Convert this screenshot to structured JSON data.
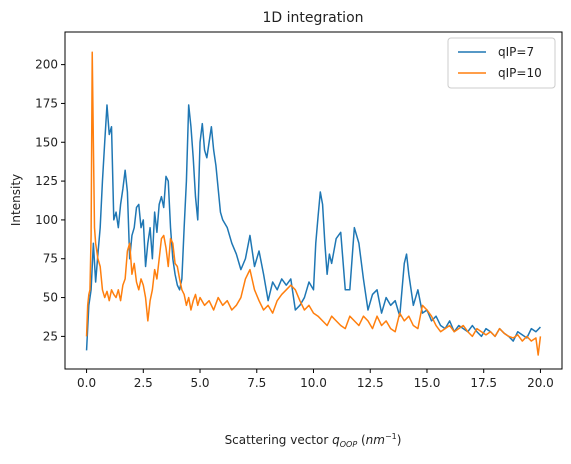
{
  "chart_data": {
    "type": "line",
    "title": "1D integration",
    "xlabel_main": "Scattering vector ",
    "xlabel_var": "q",
    "xlabel_sub": "OOP",
    "xlabel_unit_open": " (",
    "xlabel_unit": "nm",
    "xlabel_exp": "−1",
    "xlabel_unit_close": ")",
    "ylabel": "Intensity",
    "xlim": [
      -0.95,
      20.95
    ],
    "ylim": [
      4,
      221
    ],
    "xticks": [
      0.0,
      2.5,
      5.0,
      7.5,
      10.0,
      12.5,
      15.0,
      17.5,
      20.0
    ],
    "xtick_labels": [
      "0.0",
      "2.5",
      "5.0",
      "7.5",
      "10.0",
      "12.5",
      "15.0",
      "17.5",
      "20.0"
    ],
    "yticks": [
      25,
      50,
      75,
      100,
      125,
      150,
      175,
      200
    ],
    "ytick_labels": [
      "25",
      "50",
      "75",
      "100",
      "125",
      "150",
      "175",
      "200"
    ],
    "grid": false,
    "legend_position": "top-right",
    "series": [
      {
        "name": "qIP=7",
        "color": "#1f77b4",
        "x": [
          0.0,
          0.1,
          0.2,
          0.3,
          0.4,
          0.5,
          0.6,
          0.7,
          0.8,
          0.9,
          1.0,
          1.1,
          1.2,
          1.3,
          1.4,
          1.5,
          1.6,
          1.7,
          1.8,
          1.9,
          2.0,
          2.1,
          2.2,
          2.3,
          2.4,
          2.5,
          2.6,
          2.7,
          2.8,
          2.9,
          3.0,
          3.1,
          3.2,
          3.3,
          3.4,
          3.5,
          3.6,
          3.7,
          3.8,
          3.9,
          4.0,
          4.1,
          4.2,
          4.3,
          4.4,
          4.5,
          4.6,
          4.7,
          4.8,
          4.9,
          5.0,
          5.1,
          5.2,
          5.3,
          5.4,
          5.5,
          5.6,
          5.7,
          5.8,
          5.9,
          6.0,
          6.2,
          6.4,
          6.6,
          6.8,
          7.0,
          7.2,
          7.4,
          7.6,
          7.8,
          8.0,
          8.2,
          8.4,
          8.6,
          8.8,
          9.0,
          9.2,
          9.4,
          9.6,
          9.8,
          10.0,
          10.1,
          10.2,
          10.3,
          10.4,
          10.5,
          10.6,
          10.7,
          10.8,
          11.0,
          11.2,
          11.4,
          11.6,
          11.8,
          12.0,
          12.2,
          12.4,
          12.6,
          12.8,
          13.0,
          13.2,
          13.4,
          13.6,
          13.8,
          14.0,
          14.1,
          14.2,
          14.4,
          14.6,
          14.8,
          15.0,
          15.2,
          15.4,
          15.6,
          15.8,
          16.0,
          16.2,
          16.4,
          16.6,
          16.8,
          17.0,
          17.2,
          17.4,
          17.6,
          17.8,
          18.0,
          18.2,
          18.4,
          18.6,
          18.8,
          19.0,
          19.2,
          19.4,
          19.6,
          19.8,
          20.0
        ],
        "y": [
          16,
          45,
          55,
          85,
          60,
          78,
          95,
          125,
          150,
          174,
          155,
          160,
          100,
          105,
          95,
          110,
          120,
          132,
          118,
          75,
          90,
          95,
          108,
          110,
          95,
          100,
          70,
          85,
          95,
          75,
          105,
          92,
          110,
          115,
          108,
          128,
          125,
          95,
          75,
          65,
          58,
          55,
          62,
          95,
          125,
          174,
          160,
          140,
          115,
          100,
          150,
          162,
          145,
          140,
          150,
          160,
          145,
          135,
          120,
          105,
          100,
          95,
          85,
          78,
          68,
          75,
          90,
          70,
          80,
          65,
          48,
          60,
          55,
          62,
          58,
          62,
          42,
          45,
          50,
          60,
          55,
          85,
          102,
          118,
          110,
          85,
          65,
          78,
          72,
          88,
          92,
          55,
          55,
          95,
          85,
          62,
          42,
          52,
          55,
          40,
          50,
          45,
          48,
          38,
          72,
          78,
          65,
          45,
          55,
          40,
          42,
          35,
          38,
          32,
          30,
          35,
          28,
          32,
          30,
          28,
          32,
          28,
          25,
          30,
          28,
          25,
          30,
          27,
          25,
          22,
          28,
          26,
          24,
          30,
          28,
          31
        ]
      },
      {
        "name": "qIP=10",
        "color": "#ff7f0e",
        "x": [
          0.0,
          0.05,
          0.1,
          0.15,
          0.2,
          0.25,
          0.3,
          0.35,
          0.4,
          0.5,
          0.6,
          0.7,
          0.8,
          0.9,
          1.0,
          1.1,
          1.2,
          1.3,
          1.4,
          1.5,
          1.6,
          1.7,
          1.8,
          1.9,
          2.0,
          2.1,
          2.2,
          2.3,
          2.4,
          2.5,
          2.6,
          2.7,
          2.8,
          2.9,
          3.0,
          3.1,
          3.2,
          3.3,
          3.4,
          3.5,
          3.6,
          3.7,
          3.8,
          3.9,
          4.0,
          4.1,
          4.2,
          4.3,
          4.4,
          4.5,
          4.6,
          4.7,
          4.8,
          4.9,
          5.0,
          5.2,
          5.4,
          5.6,
          5.8,
          6.0,
          6.2,
          6.4,
          6.6,
          6.8,
          7.0,
          7.2,
          7.4,
          7.6,
          7.8,
          8.0,
          8.2,
          8.4,
          8.6,
          8.8,
          9.0,
          9.2,
          9.4,
          9.6,
          9.8,
          10.0,
          10.2,
          10.4,
          10.6,
          10.8,
          11.0,
          11.2,
          11.4,
          11.6,
          11.8,
          12.0,
          12.2,
          12.4,
          12.6,
          12.8,
          13.0,
          13.2,
          13.4,
          13.6,
          13.8,
          14.0,
          14.2,
          14.4,
          14.6,
          14.8,
          15.0,
          15.2,
          15.4,
          15.6,
          15.8,
          16.0,
          16.2,
          16.4,
          16.6,
          16.8,
          17.0,
          17.2,
          17.4,
          17.6,
          17.8,
          18.0,
          18.2,
          18.4,
          18.6,
          18.8,
          19.0,
          19.2,
          19.4,
          19.6,
          19.8,
          19.9,
          20.0
        ],
        "y": [
          25,
          45,
          52,
          55,
          90,
          208,
          150,
          95,
          85,
          75,
          70,
          55,
          50,
          54,
          48,
          55,
          52,
          50,
          55,
          48,
          58,
          62,
          80,
          85,
          65,
          72,
          60,
          55,
          62,
          58,
          50,
          35,
          48,
          55,
          68,
          62,
          75,
          88,
          90,
          82,
          70,
          88,
          85,
          72,
          70,
          62,
          55,
          52,
          45,
          50,
          42,
          48,
          52,
          45,
          50,
          45,
          48,
          42,
          50,
          45,
          48,
          42,
          45,
          50,
          62,
          68,
          55,
          48,
          42,
          45,
          40,
          48,
          52,
          55,
          58,
          55,
          48,
          42,
          45,
          40,
          38,
          35,
          32,
          38,
          35,
          32,
          30,
          38,
          35,
          32,
          38,
          35,
          30,
          38,
          32,
          35,
          30,
          28,
          40,
          35,
          38,
          32,
          30,
          45,
          42,
          38,
          32,
          28,
          30,
          32,
          28,
          30,
          32,
          28,
          25,
          30,
          28,
          26,
          28,
          25,
          30,
          27,
          25,
          24,
          26,
          22,
          25,
          22,
          24,
          13,
          25
        ]
      }
    ]
  }
}
